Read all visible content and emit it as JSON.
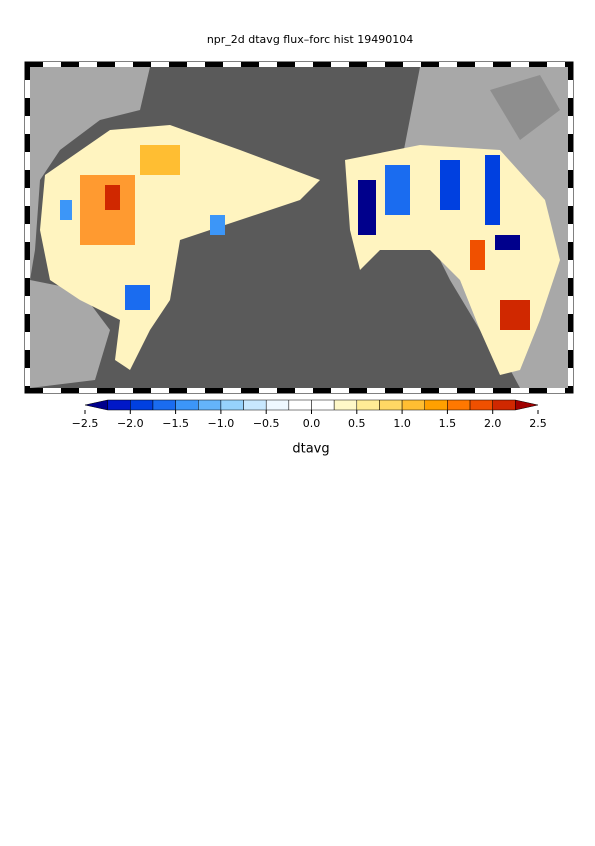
{
  "title": "npr_2d dtavg flux–forc hist 19490104",
  "colorbar": {
    "label": "dtavg",
    "range": [
      -2.5,
      2.5
    ],
    "ticks": [
      {
        "value": -2.5,
        "label": "−2.5"
      },
      {
        "value": -2,
        "label": "−2.0"
      },
      {
        "value": -1.5,
        "label": "−1.5"
      },
      {
        "value": -1,
        "label": "−1.0"
      },
      {
        "value": -0.5,
        "label": "−0.5"
      },
      {
        "value": 0,
        "label": "0.0"
      },
      0.5,
      {
        "value": 1,
        "label": "1.0"
      },
      1.5,
      {
        "value": 2,
        "label": "2.0"
      },
      2.5
    ],
    "colors": [
      "#00008c",
      "#0018c8",
      "#0040e0",
      "#1a6cf0",
      "#3c96f8",
      "#64b4fa",
      "#96d2fc",
      "#c8e8fe",
      "#eef8ff",
      "#ffffff",
      "#ffffff",
      "#fff8c8",
      "#ffec96",
      "#ffd864",
      "#ffbe32",
      "#ffa000",
      "#ff7800",
      "#f05000",
      "#d02800",
      "#a00000"
    ]
  }
}
